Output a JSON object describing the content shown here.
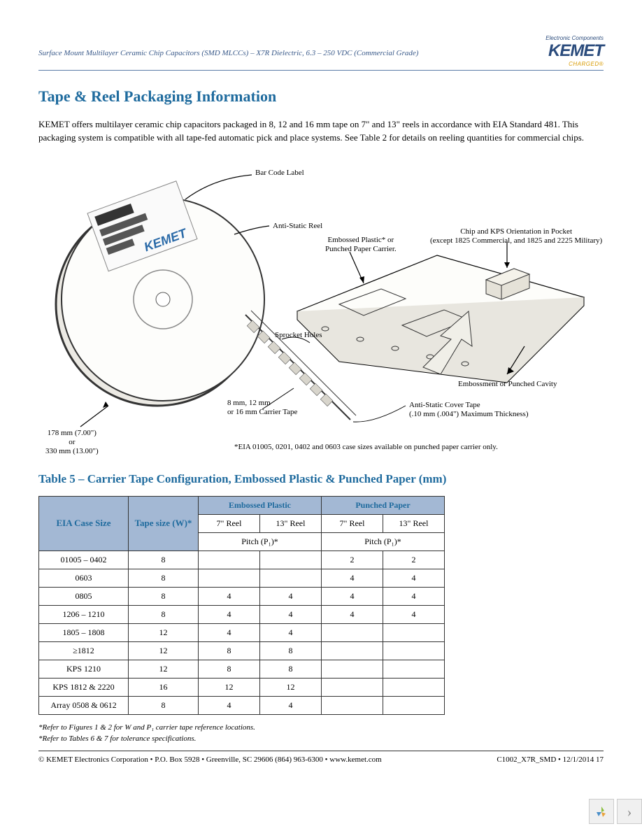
{
  "header": {
    "subtitle": "Surface Mount Multilayer Ceramic Chip Capacitors (SMD MLCCs) – X7R Dielectric, 6.3 – 250 VDC (Commercial Grade)",
    "logo_tag": "Electronic Components",
    "logo_main": "KEMET",
    "logo_sub": "CHARGED®"
  },
  "section": {
    "h1": "Tape & Reel Packaging Information",
    "p1": "KEMET offers multilayer ceramic chip capacitors packaged in 8, 12 and 16 mm tape on 7\" and 13\" reels in accordance with EIA Standard 481. This packaging system is compatible with all tape-fed automatic pick and place systems. See Table 2 for details on reeling quantities for commercial chips."
  },
  "diagram": {
    "barcode": "Bar Code Label",
    "antistatic_reel": "Anti-Static Reel",
    "carrier_label1": "Embossed Plastic* or",
    "carrier_label2": "Punched Paper Carrier.",
    "chip_orient1": "Chip and KPS Orientation in Pocket",
    "chip_orient2": "(except 1825 Commercial, and 1825 and 2225 Military)",
    "sprocket": "Sprocket Holes",
    "emboss": "Embossment or Punched Cavity",
    "carrier_tape1": "8 mm, 12 mm",
    "carrier_tape2": "or 16 mm Carrier Tape",
    "cover_tape1": "Anti-Static Cover Tape",
    "cover_tape2": "(.10 mm (.004\") Maximum Thickness)",
    "reel_size1": "178 mm (7.00\")",
    "reel_size2": "or",
    "reel_size3": "330 mm (13.00\")",
    "eia_note": "*EIA 01005, 0201, 0402 and 0603 case sizes available on punched paper carrier only."
  },
  "table": {
    "title": "Table 5 – Carrier Tape Configuration, Embossed Plastic & Punched Paper (mm)",
    "col_case": "EIA Case Size",
    "col_tape": "Tape size (W)*",
    "col_emb": "Embossed Plastic",
    "col_pun": "Punched Paper",
    "col_7": "7\" Reel",
    "col_13": "13\" Reel",
    "col_pitch": "Pitch (P₁)*",
    "rows": [
      {
        "case": "01005 – 0402",
        "tape": "8",
        "e7": "",
        "e13": "",
        "p7": "2",
        "p13": "2"
      },
      {
        "case": "0603",
        "tape": "8",
        "e7": "",
        "e13": "",
        "p7": "4",
        "p13": "4"
      },
      {
        "case": "0805",
        "tape": "8",
        "e7": "4",
        "e13": "4",
        "p7": "4",
        "p13": "4"
      },
      {
        "case": "1206 – 1210",
        "tape": "8",
        "e7": "4",
        "e13": "4",
        "p7": "4",
        "p13": "4"
      },
      {
        "case": "1805 – 1808",
        "tape": "12",
        "e7": "4",
        "e13": "4",
        "p7": "",
        "p13": ""
      },
      {
        "case": "≥1812",
        "tape": "12",
        "e7": "8",
        "e13": "8",
        "p7": "",
        "p13": ""
      },
      {
        "case": "KPS 1210",
        "tape": "12",
        "e7": "8",
        "e13": "8",
        "p7": "",
        "p13": ""
      },
      {
        "case": "KPS 1812 & 2220",
        "tape": "16",
        "e7": "12",
        "e13": "12",
        "p7": "",
        "p13": ""
      },
      {
        "case": "Array 0508 & 0612",
        "tape": "8",
        "e7": "4",
        "e13": "4",
        "p7": "",
        "p13": ""
      }
    ],
    "foot1": "*Refer to Figures 1 & 2 for W and P₁ carrier tape reference locations.",
    "foot2": "*Refer to Tables 6 & 7 for tolerance specifications."
  },
  "footer": {
    "left": "© KEMET Electronics Corporation • P.O. Box 5928 • Greenville, SC 29606 (864) 963-6300 • www.kemet.com",
    "right": "C1002_X7R_SMD • 12/1/2014  17"
  },
  "pager": {
    "next": "›"
  }
}
